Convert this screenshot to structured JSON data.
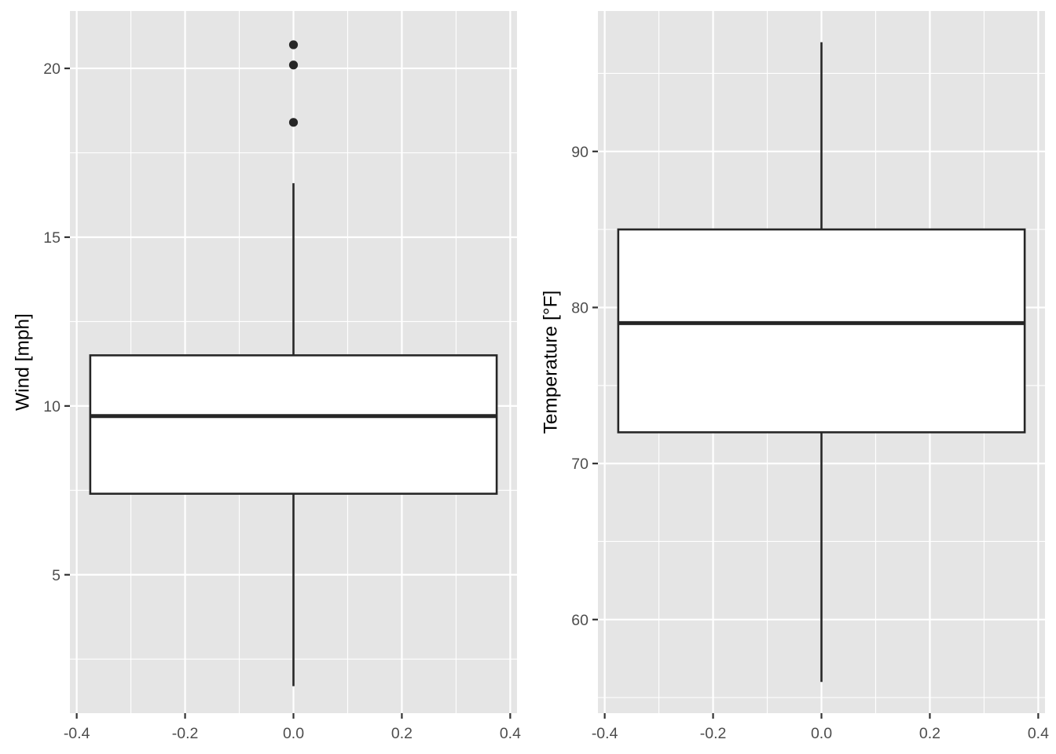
{
  "chart_data": [
    {
      "type": "boxplot",
      "ylabel": "Wind [mph]",
      "xlim": [
        -0.4125,
        0.4125
      ],
      "ylim": [
        0.9,
        21.7
      ],
      "x_ticks": [
        -0.4,
        -0.2,
        0.0,
        0.2,
        0.4
      ],
      "x_tick_labels": [
        "-0.4",
        "-0.2",
        "0.0",
        "0.2",
        "0.4"
      ],
      "y_ticks": [
        5,
        10,
        15,
        20
      ],
      "y_tick_labels": [
        "5",
        "10",
        "15",
        "20"
      ],
      "grid": true,
      "box": {
        "x_center": 0.0,
        "x_half_width": 0.375,
        "whisker_low": 1.7,
        "q1": 7.4,
        "median": 9.7,
        "q3": 11.5,
        "whisker_high": 16.6,
        "outliers": [
          18.4,
          20.1,
          20.7
        ]
      }
    },
    {
      "type": "boxplot",
      "ylabel": "Temperature [°F]",
      "xlim": [
        -0.4125,
        0.4125
      ],
      "ylim": [
        54.0,
        99.0
      ],
      "x_ticks": [
        -0.4,
        -0.2,
        0.0,
        0.2,
        0.4
      ],
      "x_tick_labels": [
        "-0.4",
        "-0.2",
        "0.0",
        "0.2",
        "0.4"
      ],
      "y_ticks": [
        60,
        70,
        80,
        90
      ],
      "y_tick_labels": [
        "60",
        "70",
        "80",
        "90"
      ],
      "grid": true,
      "box": {
        "x_center": 0.0,
        "x_half_width": 0.375,
        "whisker_low": 56,
        "q1": 72,
        "median": 79,
        "q3": 85,
        "whisker_high": 97,
        "outliers": []
      }
    }
  ]
}
